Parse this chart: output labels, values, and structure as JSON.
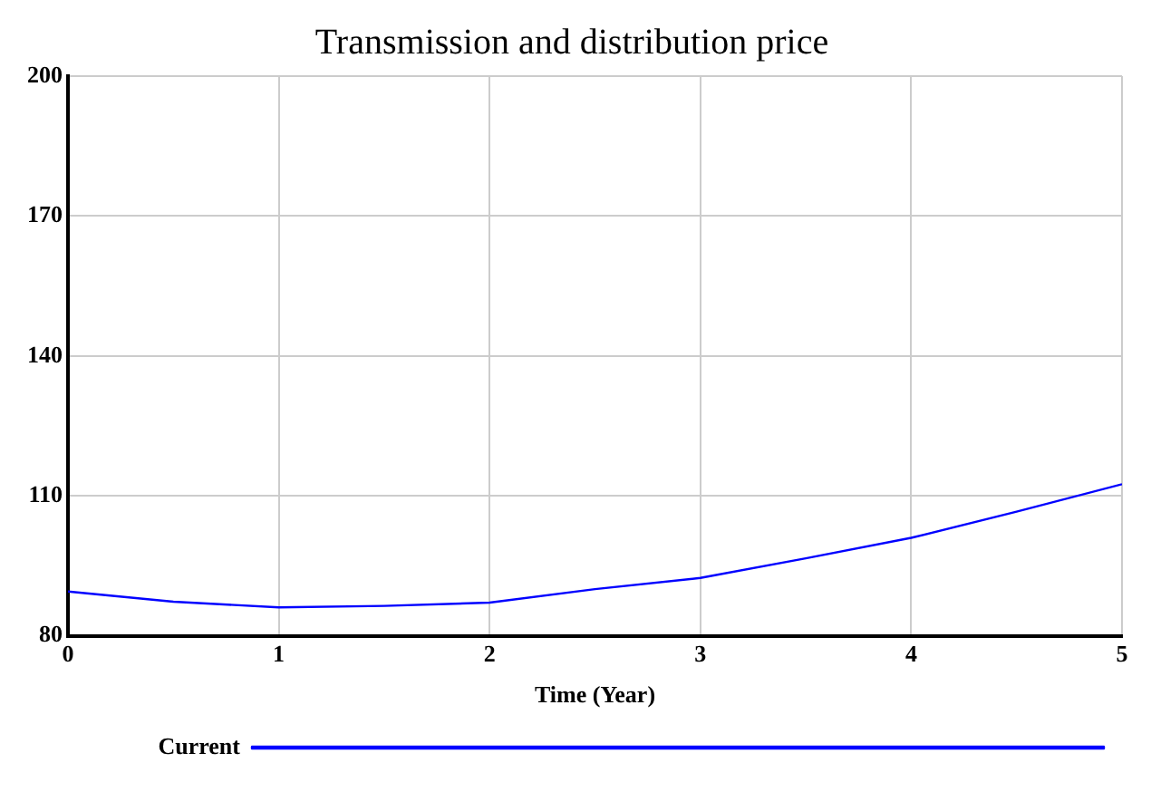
{
  "chart_data": {
    "type": "line",
    "title": "Transmission and distribution price",
    "xlabel": "Time (Year)",
    "x": [
      0,
      0.5,
      1,
      1.5,
      2,
      2.5,
      3,
      3.5,
      4,
      4.5,
      5
    ],
    "series": [
      {
        "name": "Current",
        "color": "#0000ff",
        "values": [
          89.5,
          87.3,
          86.1,
          86.4,
          87.1,
          90.0,
          92.4,
          96.6,
          101.0,
          106.6,
          112.5
        ]
      }
    ],
    "xlim": [
      0,
      5
    ],
    "xticks": [
      0,
      1,
      2,
      3,
      4,
      5
    ],
    "ylim": [
      80,
      200
    ],
    "yticks": [
      80,
      110,
      140,
      170,
      200
    ],
    "grid": true,
    "legend": "bottom",
    "marker": "none",
    "line_style": "solid"
  }
}
